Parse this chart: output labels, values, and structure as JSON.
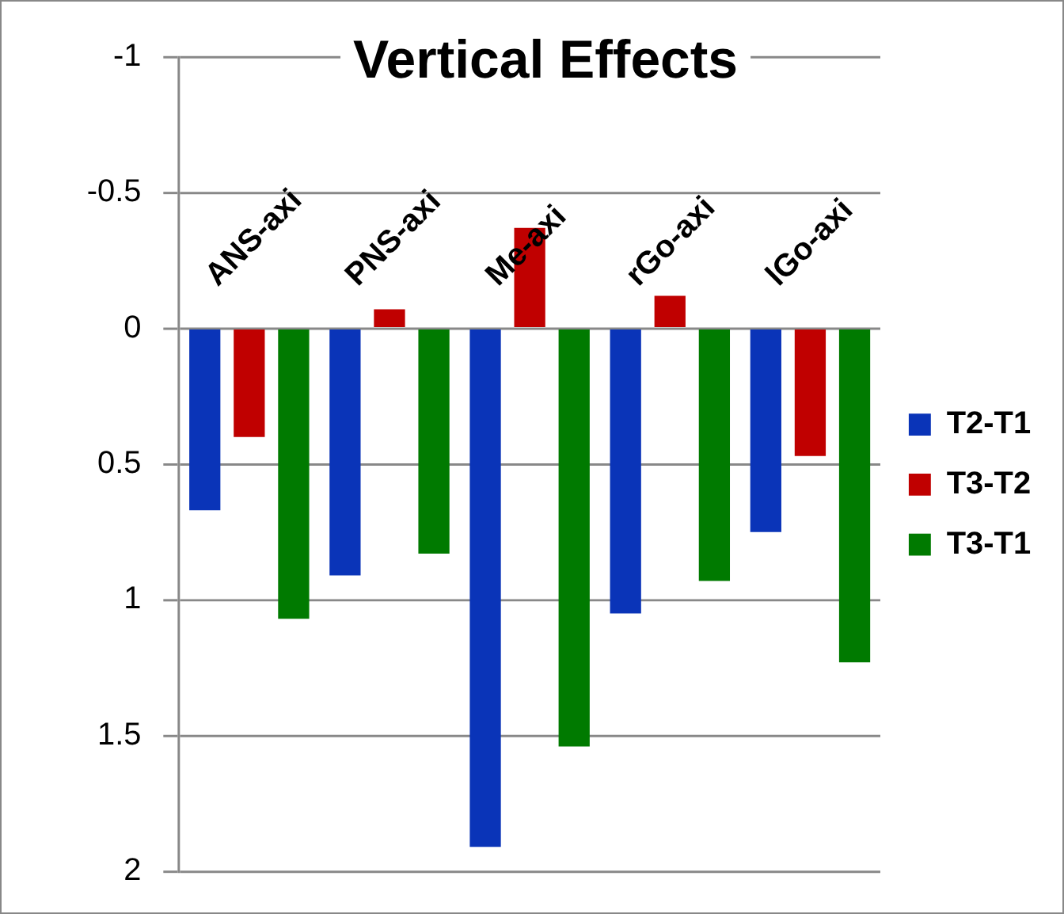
{
  "chart_data": {
    "type": "bar",
    "title": "Vertical Effects",
    "categories": [
      "ANS-axi",
      "PNS-axi",
      "Me-axi",
      "rGo-axi",
      "lGo-axi"
    ],
    "series": [
      {
        "name": "T2-T1",
        "color": "#0a34b8",
        "values": [
          0.67,
          0.91,
          1.91,
          1.05,
          0.75
        ]
      },
      {
        "name": "T3-T2",
        "color": "#c00000",
        "values": [
          0.4,
          -0.07,
          -0.37,
          -0.12,
          0.47
        ]
      },
      {
        "name": "T3-T1",
        "color": "#007a00",
        "values": [
          1.07,
          0.83,
          1.54,
          0.93,
          1.23
        ]
      }
    ],
    "ylim": [
      2,
      -1
    ],
    "yticks": [
      -1,
      -0.5,
      0,
      0.5,
      1,
      1.5,
      2
    ],
    "grid": "y",
    "legend": "right"
  }
}
